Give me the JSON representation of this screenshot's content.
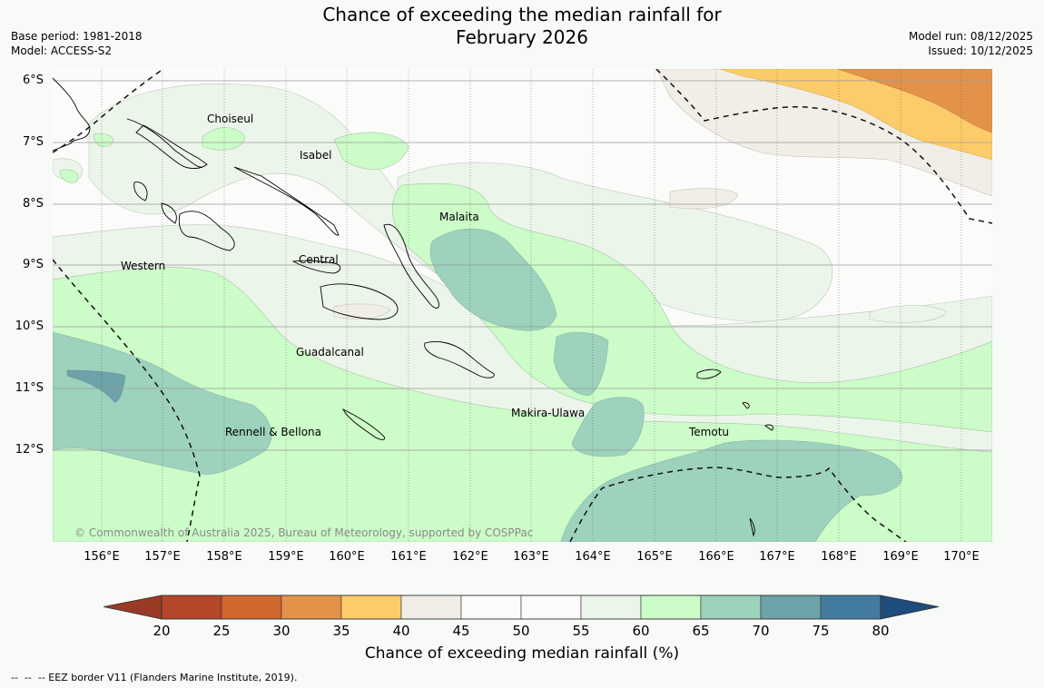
{
  "header": {
    "title_line1": "Chance of exceeding the median rainfall for",
    "title_line2": "February 2026",
    "base_period": "Base period: 1981-2018",
    "model": "Model: ACCESS-S2",
    "model_run": "Model run: 08/12/2025",
    "issued": "Issued: 10/12/2025"
  },
  "axes": {
    "lat_labels": [
      "6°S",
      "7°S",
      "8°S",
      "9°S",
      "10°S",
      "11°S",
      "12°S"
    ],
    "lon_labels": [
      "156°E",
      "157°E",
      "158°E",
      "159°E",
      "160°E",
      "161°E",
      "162°E",
      "163°E",
      "164°E",
      "165°E",
      "166°E",
      "167°E",
      "168°E",
      "169°E",
      "170°E"
    ]
  },
  "regions": {
    "choiseul": "Choiseul",
    "isabel": "Isabel",
    "malaita": "Malaita",
    "western": "Western",
    "central": "Central",
    "guadalcanal": "Guadalcanal",
    "makira_ulawa": "Makira-Ulawa",
    "rennell_bellona": "Rennell & Bellona",
    "temotu": "Temotu"
  },
  "copyright": "© Commonwealth of Australia 2025, Bureau of Meteorology, supported by COSPPac",
  "colorbar": {
    "ticks": [
      "20",
      "25",
      "30",
      "35",
      "40",
      "45",
      "50",
      "55",
      "60",
      "65",
      "70",
      "75",
      "80"
    ],
    "colors": [
      "#b5472a",
      "#d0672f",
      "#e39349",
      "#fdcc6a",
      "#f1eee8",
      "#fbfcfa",
      "#fbfcfa",
      "#ecf5ea",
      "#ccfcc8",
      "#9dd2bd",
      "#6ca2a8",
      "#437c9e"
    ],
    "low_color": "#993a25",
    "high_color": "#1d4c7d",
    "title": "Chance of exceeding median rainfall (%)"
  },
  "footnote": "--  --  -- EEZ border V11 (Flanders Marine Institute, 2019)."
}
